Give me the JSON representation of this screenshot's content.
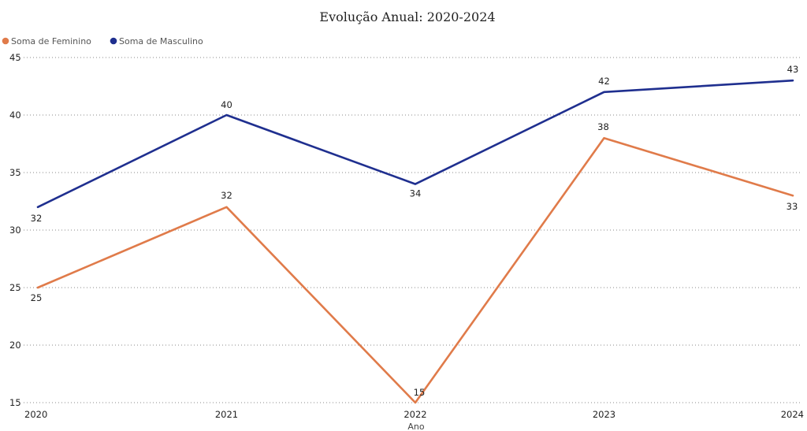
{
  "chart_data": {
    "type": "line",
    "title": "Evolução Anual: 2020-2024",
    "xlabel": "Ano",
    "ylabel": "",
    "categories": [
      "2020",
      "2021",
      "2022",
      "2023",
      "2024"
    ],
    "ylim": [
      15,
      45
    ],
    "yticks": [
      15,
      20,
      25,
      30,
      35,
      40,
      45
    ],
    "grid": true,
    "legend_position": "top-left",
    "series": [
      {
        "name": "Soma de Feminino",
        "color": "#E07B4A",
        "values": [
          25,
          32,
          15,
          38,
          33
        ]
      },
      {
        "name": "Soma de Masculino",
        "color": "#1F2F8F",
        "values": [
          32,
          40,
          34,
          42,
          43
        ]
      }
    ]
  }
}
